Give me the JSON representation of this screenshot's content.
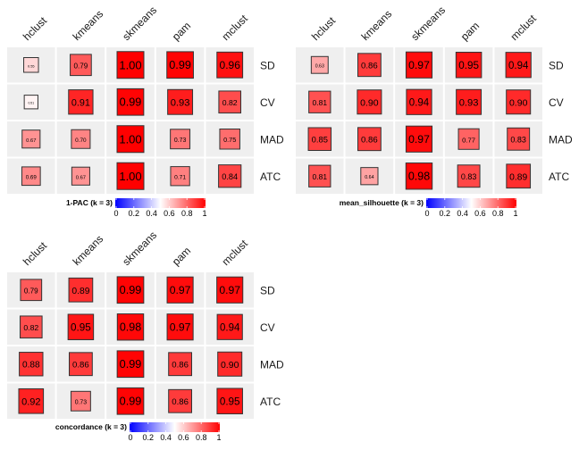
{
  "chart_data": [
    {
      "type": "heatmap",
      "legend_title": "1-PAC (k = 3)",
      "columns": [
        "hclust",
        "kmeans",
        "skmeans",
        "pam",
        "mclust"
      ],
      "rows": [
        "SD",
        "CV",
        "MAD",
        "ATC"
      ],
      "values": [
        [
          0.55,
          0.79,
          1.0,
          0.99,
          0.96
        ],
        [
          0.51,
          0.91,
          0.99,
          0.93,
          0.82
        ],
        [
          0.67,
          0.7,
          1.0,
          0.73,
          0.75
        ],
        [
          0.69,
          0.67,
          1.0,
          0.71,
          0.84
        ]
      ],
      "labels": [
        [
          "0.55",
          "0.79",
          "1.00",
          "0.99",
          "0.96"
        ],
        [
          "0.51",
          "0.91",
          "0.99",
          "0.93",
          "0.82"
        ],
        [
          "0.67",
          "0.70",
          "1.00",
          "0.73",
          "0.75"
        ],
        [
          "0.69",
          "0.67",
          "1.00",
          "0.71",
          "0.84"
        ]
      ],
      "color_scale": {
        "range": [
          0,
          1
        ],
        "colors": [
          "#0000ff",
          "#ffffff",
          "#ff0000"
        ],
        "ticks": [
          "0",
          "0.2",
          "0.4",
          "0.6",
          "0.8",
          "1"
        ]
      },
      "legend_placement": "bottom"
    },
    {
      "type": "heatmap",
      "legend_title": "mean_silhouette (k = 3)",
      "columns": [
        "hclust",
        "kmeans",
        "skmeans",
        "pam",
        "mclust"
      ],
      "rows": [
        "SD",
        "CV",
        "MAD",
        "ATC"
      ],
      "values": [
        [
          0.63,
          0.86,
          0.97,
          0.95,
          0.94
        ],
        [
          0.81,
          0.9,
          0.94,
          0.93,
          0.9
        ],
        [
          0.85,
          0.86,
          0.97,
          0.77,
          0.83
        ],
        [
          0.81,
          0.64,
          0.98,
          0.83,
          0.89
        ]
      ],
      "labels": [
        [
          "0.63",
          "0.86",
          "0.97",
          "0.95",
          "0.94"
        ],
        [
          "0.81",
          "0.90",
          "0.94",
          "0.93",
          "0.90"
        ],
        [
          "0.85",
          "0.86",
          "0.97",
          "0.77",
          "0.83"
        ],
        [
          "0.81",
          "0.64",
          "0.98",
          "0.83",
          "0.89"
        ]
      ],
      "color_scale": {
        "range": [
          0,
          1
        ],
        "colors": [
          "#0000ff",
          "#ffffff",
          "#ff0000"
        ],
        "ticks": [
          "0",
          "0.2",
          "0.4",
          "0.6",
          "0.8",
          "1"
        ]
      },
      "legend_placement": "bottom"
    },
    {
      "type": "heatmap",
      "legend_title": "concordance (k = 3)",
      "columns": [
        "hclust",
        "kmeans",
        "skmeans",
        "pam",
        "mclust"
      ],
      "rows": [
        "SD",
        "CV",
        "MAD",
        "ATC"
      ],
      "values": [
        [
          0.79,
          0.89,
          0.99,
          0.97,
          0.97
        ],
        [
          0.82,
          0.95,
          0.98,
          0.97,
          0.94
        ],
        [
          0.88,
          0.86,
          0.99,
          0.86,
          0.9
        ],
        [
          0.92,
          0.73,
          0.99,
          0.86,
          0.95
        ]
      ],
      "labels": [
        [
          "0.79",
          "0.89",
          "0.99",
          "0.97",
          "0.97"
        ],
        [
          "0.82",
          "0.95",
          "0.98",
          "0.97",
          "0.94"
        ],
        [
          "0.88",
          "0.86",
          "0.99",
          "0.86",
          "0.90"
        ],
        [
          "0.92",
          "0.73",
          "0.99",
          "0.86",
          "0.95"
        ]
      ],
      "color_scale": {
        "range": [
          0,
          1
        ],
        "colors": [
          "#0000ff",
          "#ffffff",
          "#ff0000"
        ],
        "ticks": [
          "0",
          "0.2",
          "0.4",
          "0.6",
          "0.8",
          "1"
        ]
      },
      "legend_placement": "bottom"
    }
  ]
}
